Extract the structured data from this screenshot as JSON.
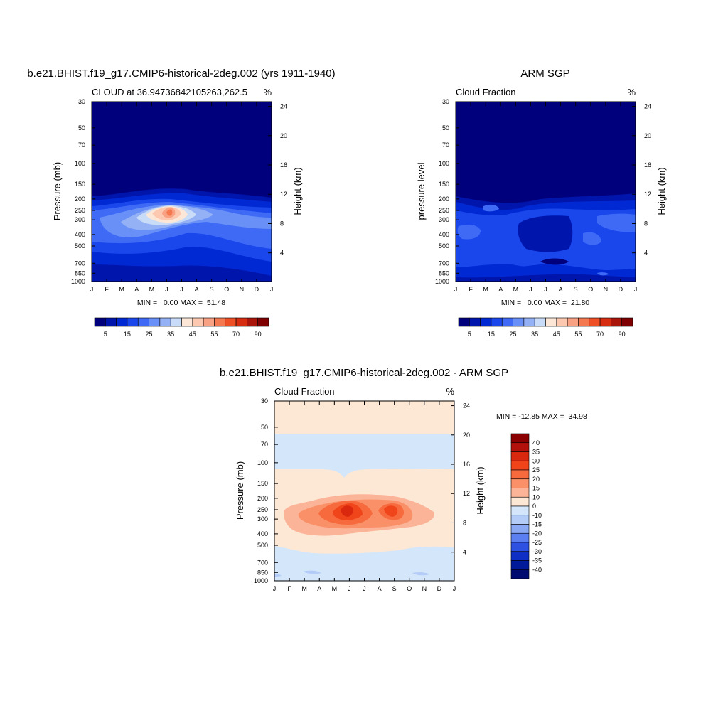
{
  "chart_data": [
    {
      "type": "heatmap",
      "title": "b.e21.BHIST.f19_g17.CMIP6-historical-2deg.002 (yrs 1911-1940)",
      "subtitle_left": "CLOUD at 36.94736842105263,262.5",
      "units": "%",
      "ylabel": "Pressure (mb)",
      "ylabel_right": "Height (km)",
      "x_ticks": [
        "J",
        "F",
        "M",
        "A",
        "M",
        "J",
        "J",
        "A",
        "S",
        "O",
        "N",
        "D",
        "J"
      ],
      "y_ticks": [
        "30",
        "50",
        "70",
        "100",
        "150",
        "200",
        "250",
        "300",
        "400",
        "500",
        "700",
        "850",
        "1000"
      ],
      "y_right_ticks": [
        "24",
        "20",
        "16",
        "12",
        "8",
        "4"
      ],
      "min_max_text": "MIN =   0.00 MAX =  51.48",
      "colorbar_ticks": [
        "5",
        "15",
        "25",
        "35",
        "45",
        "55",
        "70",
        "90"
      ],
      "levels": [
        0,
        5,
        10,
        15,
        20,
        25,
        30,
        35,
        40,
        45,
        50,
        55,
        60,
        70,
        80,
        90
      ],
      "min": 0.0,
      "max": 51.48
    },
    {
      "type": "heatmap",
      "title": "ARM SGP",
      "subtitle_left": "Cloud Fraction",
      "units": "%",
      "ylabel": "pressure level",
      "ylabel_right": "Height (km)",
      "x_ticks": [
        "J",
        "F",
        "M",
        "A",
        "M",
        "J",
        "J",
        "A",
        "S",
        "O",
        "N",
        "D",
        "J"
      ],
      "y_ticks": [
        "30",
        "50",
        "70",
        "100",
        "150",
        "200",
        "250",
        "300",
        "400",
        "500",
        "700",
        "850",
        "1000"
      ],
      "y_right_ticks": [
        "24",
        "20",
        "16",
        "12",
        "8",
        "4"
      ],
      "min_max_text": "MIN =   0.00 MAX =  21.80",
      "colorbar_ticks": [
        "5",
        "15",
        "25",
        "35",
        "45",
        "55",
        "70",
        "90"
      ],
      "levels": [
        0,
        5,
        10,
        15,
        20,
        25,
        30,
        35,
        40,
        45,
        50,
        55,
        60,
        70,
        80,
        90
      ],
      "min": 0.0,
      "max": 21.8
    },
    {
      "type": "heatmap",
      "title": "b.e21.BHIST.f19_g17.CMIP6-historical-2deg.002 - ARM SGP",
      "subtitle_left": "Cloud Fraction",
      "units": "%",
      "ylabel": "Pressure (mb)",
      "ylabel_right": "Height (km)",
      "x_ticks": [
        "J",
        "F",
        "M",
        "A",
        "M",
        "J",
        "J",
        "A",
        "S",
        "O",
        "N",
        "D",
        "J"
      ],
      "y_ticks": [
        "30",
        "50",
        "70",
        "100",
        "150",
        "200",
        "250",
        "300",
        "400",
        "500",
        "700",
        "850",
        "1000"
      ],
      "y_right_ticks": [
        "24",
        "20",
        "16",
        "12",
        "8",
        "4"
      ],
      "min_max_text": "MIN = -12.85 MAX =  34.98",
      "colorbar_ticks": [
        "40",
        "35",
        "30",
        "25",
        "20",
        "15",
        "10",
        "0",
        "-10",
        "-15",
        "-20",
        "-25",
        "-30",
        "-35",
        "-40"
      ],
      "min": -12.85,
      "max": 34.98
    }
  ],
  "colors": {
    "seq": [
      "#00007d",
      "#0015ac",
      "#0029d4",
      "#1a47ec",
      "#3e6af6",
      "#6890f7",
      "#95b1f6",
      "#c8dbf7",
      "#fce7d7",
      "#fcc8b0",
      "#f9a183",
      "#f4794f",
      "#ee4f25",
      "#d62c0f",
      "#aa150a",
      "#7f0000"
    ],
    "div_top_to_bottom": [
      "#8a0000",
      "#b3120c",
      "#d9280e",
      "#f0451b",
      "#f66a3e",
      "#f99068",
      "#fbb497",
      "#fde8d6",
      "#d3e6fa",
      "#b4cdf8",
      "#8aa8f3",
      "#5b7ef0",
      "#2d52e2",
      "#0f2fc4",
      "#001a99",
      "#000b70"
    ]
  }
}
